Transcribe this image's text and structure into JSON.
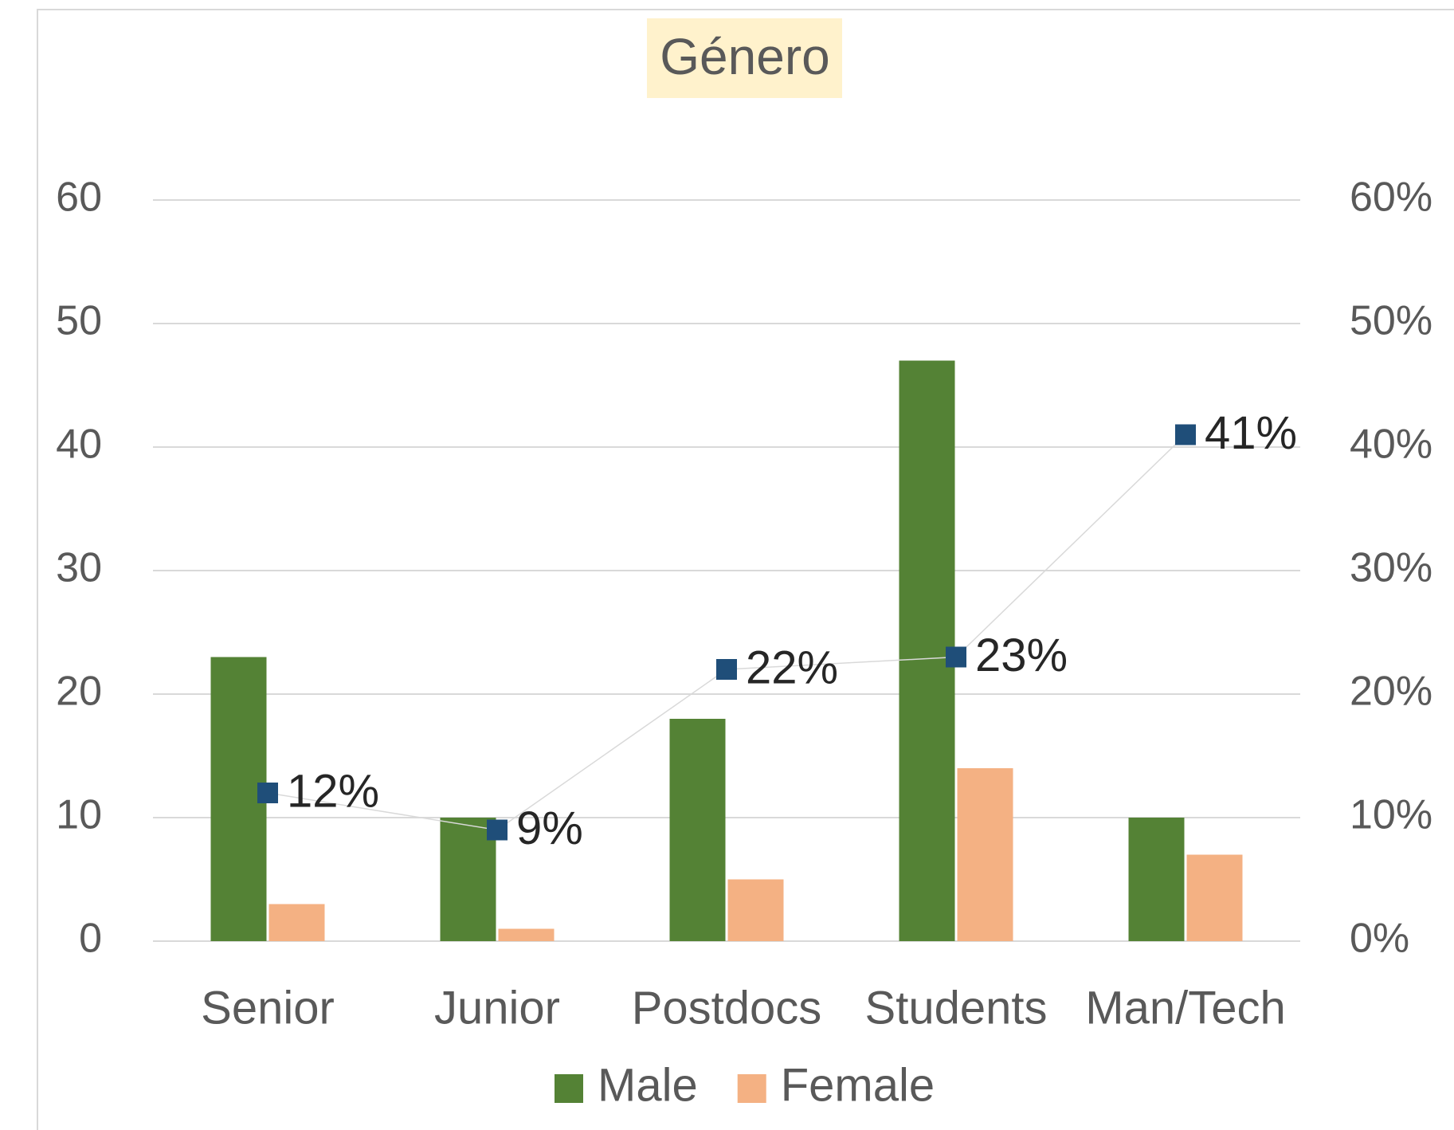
{
  "chart_data": {
    "type": "bar",
    "title": "Género",
    "categories": [
      "Senior",
      "Junior",
      "Postdocs",
      "Students",
      "Man/Tech"
    ],
    "series": [
      {
        "name": "Male",
        "color": "#548235",
        "values": [
          23,
          10,
          18,
          47,
          10
        ]
      },
      {
        "name": "Female",
        "color": "#f4b183",
        "values": [
          3,
          1,
          5,
          14,
          7
        ]
      },
      {
        "type": "line",
        "axis": "y2",
        "color": "#1f4e79",
        "values": [
          12,
          9,
          22,
          23,
          41
        ],
        "value_labels": [
          "12%",
          "9%",
          "22%",
          "23%",
          "41%"
        ]
      }
    ],
    "ylim": [
      0,
      60
    ],
    "yticks": [
      0,
      10,
      20,
      30,
      40,
      50,
      60
    ],
    "y2lim": [
      0,
      60
    ],
    "y2ticks": [
      {
        "value": 0,
        "label": "0%"
      },
      {
        "value": 10,
        "label": "10%"
      },
      {
        "value": 20,
        "label": "20%"
      },
      {
        "value": 30,
        "label": "30%"
      },
      {
        "value": 40,
        "label": "40%"
      },
      {
        "value": 50,
        "label": "50%"
      },
      {
        "value": 60,
        "label": "60%"
      }
    ],
    "grid": true,
    "legend": "bottom"
  }
}
